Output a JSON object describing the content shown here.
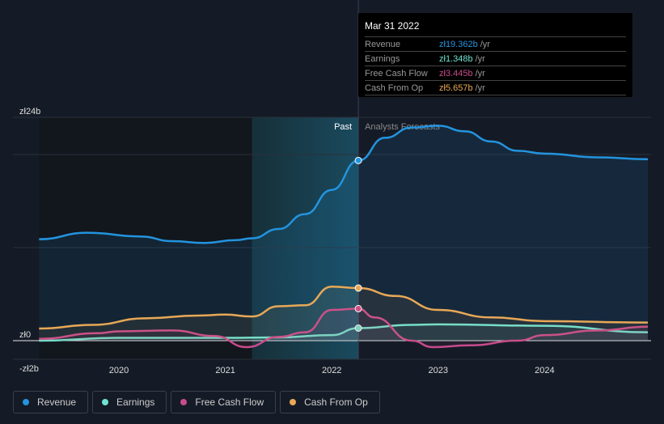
{
  "chart_data": {
    "type": "line",
    "ylim": [
      -2,
      24
    ],
    "xlim": [
      2019.25,
      2024.97
    ],
    "y_tick_labels": [
      {
        "v": 24,
        "label": "zł24b"
      },
      {
        "v": 0,
        "label": "zł0"
      },
      {
        "v": -2,
        "label": "-zł2b"
      }
    ],
    "x_ticks": [
      2020,
      2021,
      2022,
      2023,
      2024
    ],
    "x_tick_labels": [
      "2020",
      "2021",
      "2022",
      "2023",
      "2024"
    ],
    "past_label": "Past",
    "forecast_label": "Analysts Forecasts",
    "divider_x": 2022.25,
    "highlight_start": 2021.25,
    "series": [
      {
        "name": "Revenue",
        "color": "#2394df",
        "x": [
          2019.25,
          2019.7,
          2020.2,
          2020.5,
          2020.8,
          2021.1,
          2021.25,
          2021.5,
          2021.75,
          2022.0,
          2022.25,
          2022.5,
          2022.75,
          2023.0,
          2023.25,
          2023.5,
          2023.75,
          2024.0,
          2024.5,
          2024.97
        ],
        "values": [
          10.9,
          11.6,
          11.2,
          10.7,
          10.5,
          10.8,
          11.0,
          12.0,
          13.6,
          16.2,
          19.362,
          21.8,
          22.9,
          23.1,
          22.5,
          21.4,
          20.4,
          20.1,
          19.7,
          19.5
        ]
      },
      {
        "name": "Earnings",
        "color": "#6fe3d1",
        "x": [
          2019.25,
          2020.0,
          2021.0,
          2021.5,
          2022.0,
          2022.25,
          2022.75,
          2023.0,
          2024.0,
          2024.97
        ],
        "values": [
          0.0,
          0.3,
          0.3,
          0.35,
          0.6,
          1.348,
          1.7,
          1.75,
          1.6,
          0.9
        ]
      },
      {
        "name": "Free Cash Flow",
        "color": "#c84b8c",
        "x": [
          2019.25,
          2019.8,
          2020.0,
          2020.5,
          2020.9,
          2021.2,
          2021.5,
          2021.75,
          2022.0,
          2022.25,
          2022.4,
          2022.75,
          2022.95,
          2023.3,
          2023.75,
          2024.0,
          2024.5,
          2024.97
        ],
        "values": [
          0.2,
          0.8,
          1.0,
          1.1,
          0.5,
          -0.7,
          0.4,
          0.9,
          3.3,
          3.445,
          2.5,
          0.0,
          -0.7,
          -0.5,
          0.0,
          0.6,
          1.1,
          1.5
        ]
      },
      {
        "name": "Cash From Op",
        "color": "#e8a857",
        "x": [
          2019.25,
          2019.75,
          2020.25,
          2020.75,
          2021.0,
          2021.25,
          2021.5,
          2021.75,
          2022.0,
          2022.25,
          2022.6,
          2023.0,
          2023.5,
          2024.0,
          2024.97
        ],
        "values": [
          1.3,
          1.7,
          2.4,
          2.7,
          2.8,
          2.6,
          3.7,
          3.8,
          5.8,
          5.657,
          4.8,
          3.3,
          2.5,
          2.1,
          1.95
        ]
      }
    ]
  },
  "tooltip": {
    "date": "Mar 31 2022",
    "rows": [
      {
        "label": "Revenue",
        "value": "zł19.362b",
        "unit": "/yr",
        "color": "#2394df"
      },
      {
        "label": "Earnings",
        "value": "zł1.348b",
        "unit": "/yr",
        "color": "#6fe3d1"
      },
      {
        "label": "Free Cash Flow",
        "value": "zł3.445b",
        "unit": "/yr",
        "color": "#c84b8c"
      },
      {
        "label": "Cash From Op",
        "value": "zł5.657b",
        "unit": "/yr",
        "color": "#e8a857"
      }
    ]
  },
  "legend": [
    {
      "label": "Revenue",
      "color": "#2394df"
    },
    {
      "label": "Earnings",
      "color": "#6fe3d1"
    },
    {
      "label": "Free Cash Flow",
      "color": "#c84b8c"
    },
    {
      "label": "Cash From Op",
      "color": "#e8a857"
    }
  ]
}
